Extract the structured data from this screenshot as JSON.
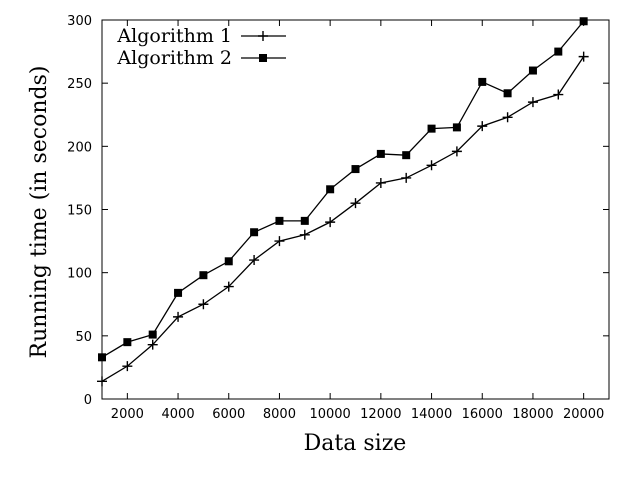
{
  "chart_data": {
    "type": "line",
    "title": "",
    "xlabel": "Data size",
    "ylabel": "Running time (in seconds)",
    "xlim": [
      1000,
      21000
    ],
    "ylim": [
      0,
      300
    ],
    "xticks": [
      2000,
      4000,
      6000,
      8000,
      10000,
      12000,
      14000,
      16000,
      18000,
      20000
    ],
    "yticks": [
      0,
      50,
      100,
      150,
      200,
      250,
      300
    ],
    "grid": false,
    "legend_position": "top-left",
    "x": [
      1000,
      2000,
      3000,
      4000,
      5000,
      6000,
      7000,
      8000,
      9000,
      10000,
      11000,
      12000,
      13000,
      14000,
      15000,
      16000,
      17000,
      18000,
      19000,
      20000
    ],
    "series": [
      {
        "name": "Algorithm 1",
        "marker": "plus",
        "values": [
          14,
          26,
          43,
          65,
          75,
          89,
          110,
          125,
          130,
          140,
          155,
          171,
          175,
          185,
          196,
          216,
          223,
          235,
          241,
          271
        ]
      },
      {
        "name": "Algorithm 2",
        "marker": "square",
        "values": [
          33,
          45,
          51,
          84,
          98,
          109,
          132,
          141,
          141,
          166,
          182,
          194,
          193,
          214,
          215,
          251,
          242,
          260,
          275,
          299
        ]
      }
    ]
  }
}
